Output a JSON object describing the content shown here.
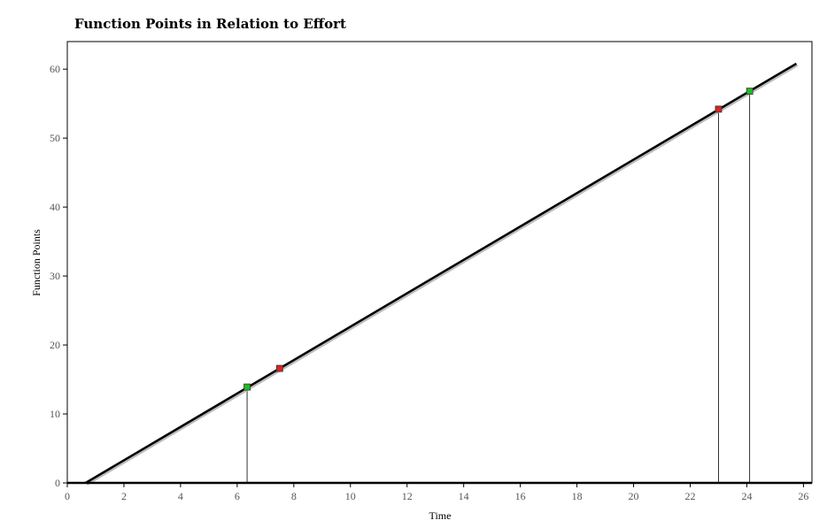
{
  "chart_data": {
    "type": "line",
    "title": "Function Points in Relation to Effort",
    "xlabel": "Time",
    "ylabel": "Function Points",
    "xlim": [
      0,
      26.3
    ],
    "ylim": [
      0,
      64
    ],
    "xticks": [
      0,
      2,
      4,
      6,
      8,
      10,
      12,
      14,
      16,
      18,
      20,
      22,
      24,
      26
    ],
    "yticks": [
      0,
      10,
      20,
      30,
      40,
      50,
      60
    ],
    "grid": false,
    "legend": "none",
    "line": {
      "x": [
        0.65,
        25.75
      ],
      "y": [
        0,
        60.8
      ],
      "color": "#000000"
    },
    "points": [
      {
        "x": 6.35,
        "y": 13.9,
        "color": "#22bb22",
        "drop_line": true
      },
      {
        "x": 7.5,
        "y": 16.6,
        "color": "#dd2222",
        "drop_line": false
      },
      {
        "x": 23.0,
        "y": 54.2,
        "color": "#dd2222",
        "drop_line": true
      },
      {
        "x": 24.1,
        "y": 56.8,
        "color": "#22bb22",
        "drop_line": true
      }
    ]
  }
}
